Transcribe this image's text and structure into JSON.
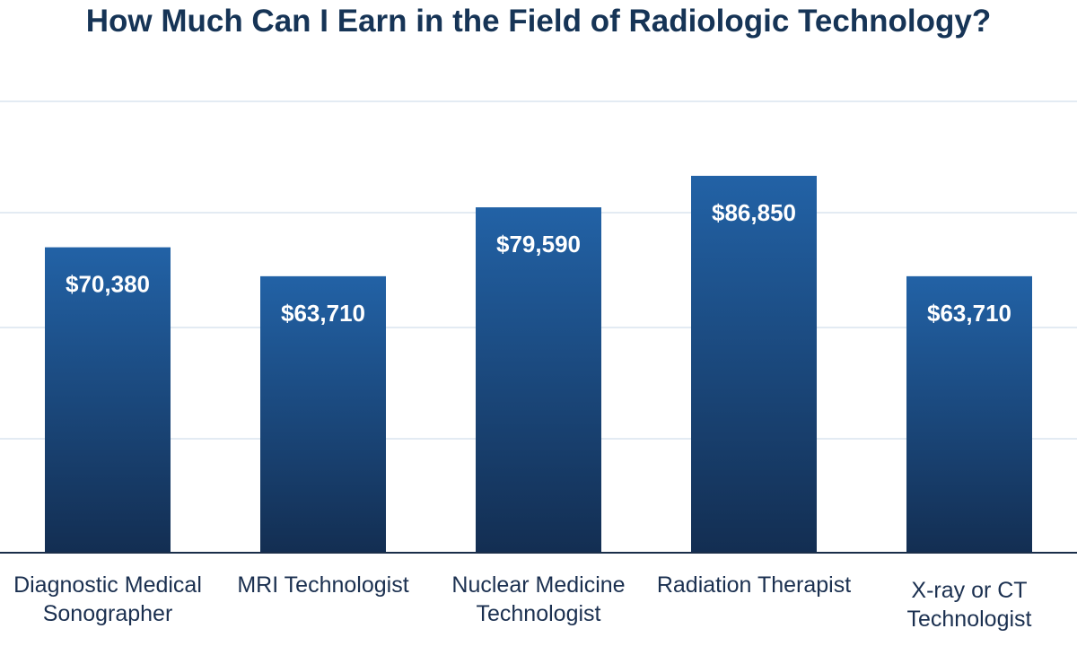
{
  "chart_data": {
    "type": "bar",
    "title": "How Much Can I Earn in the Field of Radiologic Technology?",
    "categories": [
      "Diagnostic Medical Sonographer",
      "MRI Technologist",
      "Nuclear Medicine Technologist",
      "Radiation Therapist",
      "X-ray or CT Technologist"
    ],
    "values": [
      70380,
      63710,
      79590,
      86850,
      63710
    ],
    "data_labels": [
      "$70,380",
      "$63,710",
      "$79,590",
      "$86,850",
      "$63,710"
    ],
    "xlabel": "",
    "ylabel": "",
    "ylim": [
      0,
      104000
    ],
    "grid": true,
    "legend": "none",
    "colors": {
      "bar_top": "#2262a6",
      "bar_bottom": "#132e52",
      "grid": "#e3ebf3",
      "axis": "#1a2e4a",
      "title": "#163456",
      "text": "#1b3050"
    }
  }
}
